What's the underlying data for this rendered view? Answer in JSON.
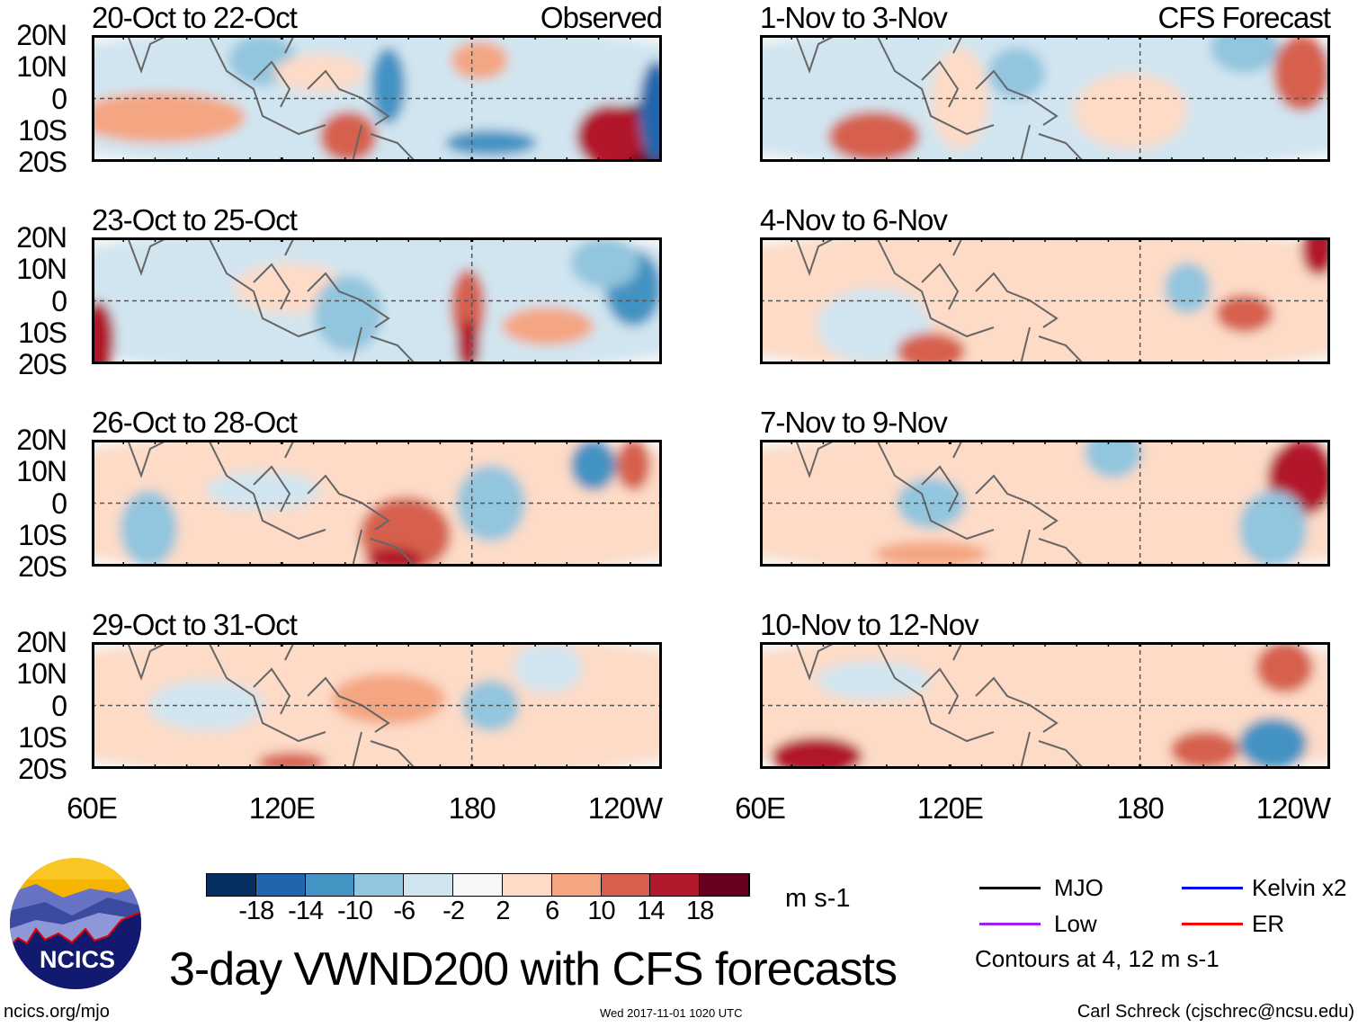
{
  "panels": {
    "left": [
      {
        "title": "20-Oct to 22-Oct",
        "tag": "Observed"
      },
      {
        "title": "23-Oct to 25-Oct"
      },
      {
        "title": "26-Oct to 28-Oct"
      },
      {
        "title": "29-Oct to 31-Oct"
      }
    ],
    "right": [
      {
        "title": "1-Nov to 3-Nov",
        "tag": "CFS Forecast"
      },
      {
        "title": "4-Nov to 6-Nov"
      },
      {
        "title": "7-Nov to 9-Nov"
      },
      {
        "title": "10-Nov to 12-Nov"
      }
    ]
  },
  "lat_labels": [
    "20N",
    "10N",
    "0",
    "10S",
    "20S"
  ],
  "lon_labels": [
    "60E",
    "120E",
    "180",
    "120W"
  ],
  "colorbar": {
    "colors": [
      "#053061",
      "#2166ac",
      "#4393c3",
      "#92c5de",
      "#d1e5f0",
      "#f7f7f7",
      "#fddbc7",
      "#f4a582",
      "#d6604d",
      "#b2182b",
      "#67001f"
    ],
    "labels": [
      "-18",
      "-14",
      "-10",
      "-6",
      "-2",
      "2",
      "6",
      "10",
      "14",
      "18"
    ],
    "units": "m s-1"
  },
  "legend": {
    "items": [
      {
        "label": "MJO",
        "color": "#000000"
      },
      {
        "label": "Kelvin x2",
        "color": "#0000ff"
      },
      {
        "label": "Low",
        "color": "#a020f0"
      },
      {
        "label": "ER",
        "color": "#ff0000"
      }
    ],
    "note": "Contours at 4, 12 m s-1"
  },
  "logo": {
    "text": "NCICS"
  },
  "title": "3-day VWND200 with CFS forecasts",
  "footer": {
    "url": "ncics.org/mjo",
    "timestamp": "Wed 2017-11-01 1020 UTC",
    "credit": "Carl Schreck (cjschrec@ncsu.edu)"
  }
}
